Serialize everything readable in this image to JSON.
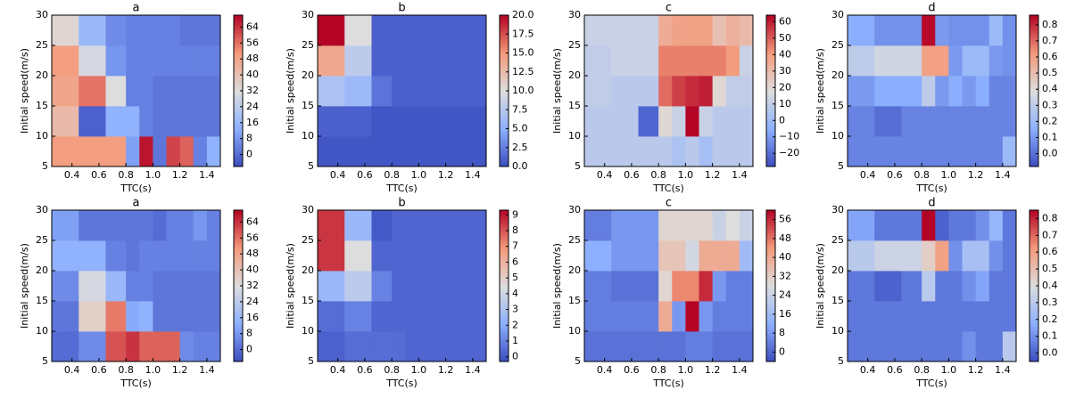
{
  "colormap": "coolwarm",
  "charts": [
    {
      "type": "heatmap",
      "title": "a",
      "xlabel": "TTC(s)",
      "ylabel": "Initial speed(m/s)",
      "x": [
        0.25,
        0.45,
        0.65,
        0.8,
        0.9,
        1.0,
        1.1,
        1.2,
        1.3,
        1.4,
        1.5
      ],
      "y": [
        5,
        10,
        15,
        20,
        25,
        30
      ],
      "z": [
        [
          50,
          50,
          50,
          10,
          68,
          2,
          62,
          58,
          4,
          14
        ],
        [
          42,
          -2,
          14,
          14,
          4,
          2,
          2,
          2,
          2,
          2
        ],
        [
          48,
          56,
          32,
          4,
          4,
          2,
          2,
          2,
          2,
          2
        ],
        [
          50,
          30,
          8,
          4,
          4,
          4,
          4,
          4,
          4,
          4
        ],
        [
          34,
          16,
          6,
          4,
          4,
          4,
          4,
          2,
          2,
          2
        ]
      ],
      "clim": [
        -6,
        70
      ],
      "cticks": [
        0,
        8,
        16,
        24,
        32,
        40,
        48,
        56,
        64
      ],
      "xticks": [
        0.4,
        0.6,
        0.8,
        {
          "value": 1.0,
          "label": "1.0"
        },
        1.2,
        1.4
      ],
      "yticks": [
        5,
        10,
        15,
        20,
        25,
        30
      ]
    },
    {
      "type": "heatmap",
      "title": "b",
      "xlabel": "TTC(s)",
      "ylabel": "Initial speed(m/s)",
      "x": [
        0.25,
        0.45,
        0.65,
        0.8,
        0.9,
        1.0,
        1.1,
        1.2,
        1.3,
        1.4,
        1.5
      ],
      "y": [
        5,
        10,
        15,
        20,
        25,
        30
      ],
      "z": [
        [
          0.5,
          0.5,
          0.5,
          0.5,
          0.5,
          0.5,
          0.5,
          0.5,
          0.5,
          0.5
        ],
        [
          1,
          1,
          0.5,
          0.5,
          0.5,
          0.5,
          0.5,
          0.5,
          0.5,
          0.5
        ],
        [
          7,
          6,
          2,
          1,
          1,
          1,
          1,
          1,
          1,
          1
        ],
        [
          14,
          8,
          1,
          1,
          1,
          1,
          1,
          1,
          1,
          1
        ],
        [
          20,
          10,
          1,
          1,
          1,
          1,
          1,
          1,
          1,
          1
        ]
      ],
      "clim": [
        0,
        20
      ],
      "cticks": [
        {
          "value": 0,
          "label": "0.0"
        },
        2.5,
        {
          "value": 5,
          "label": "5.0"
        },
        7.5,
        {
          "value": 10,
          "label": "10.0"
        },
        12.5,
        {
          "value": 15,
          "label": "15.0"
        },
        17.5,
        {
          "value": 20,
          "label": "20.0"
        }
      ],
      "xticks": [
        0.4,
        0.6,
        0.8,
        {
          "value": 1.0,
          "label": "1.0"
        },
        1.2,
        1.4
      ],
      "yticks": [
        5,
        10,
        15,
        20,
        25,
        30
      ]
    },
    {
      "type": "heatmap",
      "title": "c",
      "xlabel": "TTC(s)",
      "ylabel": "Initial speed(m/s)",
      "x": [
        0.25,
        0.45,
        0.65,
        0.8,
        0.9,
        1.0,
        1.1,
        1.2,
        1.3,
        1.4,
        1.5
      ],
      "y": [
        5,
        10,
        15,
        20,
        25,
        30
      ],
      "z": [
        [
          8,
          8,
          8,
          8,
          4,
          8,
          2,
          8,
          8,
          8
        ],
        [
          8,
          8,
          -22,
          20,
          12,
          64,
          12,
          8,
          8,
          8
        ],
        [
          10,
          8,
          8,
          48,
          55,
          58,
          60,
          20,
          10,
          10
        ],
        [
          10,
          12,
          12,
          45,
          45,
          45,
          45,
          45,
          40,
          12
        ],
        [
          12,
          12,
          12,
          35,
          38,
          38,
          38,
          28,
          33,
          30
        ]
      ],
      "clim": [
        -28,
        64
      ],
      "cticks": [
        {
          "value": -20,
          "label": "−20"
        },
        {
          "value": -10,
          "label": "−10"
        },
        0,
        10,
        20,
        30,
        40,
        50,
        60
      ],
      "xticks": [
        0.4,
        0.6,
        0.8,
        {
          "value": 1.0,
          "label": "1.0"
        },
        1.2,
        1.4
      ],
      "yticks": [
        5,
        10,
        15,
        20,
        25,
        30
      ]
    },
    {
      "type": "heatmap",
      "title": "d",
      "xlabel": "TTC(s)",
      "ylabel": "Initial speed(m/s)",
      "x": [
        0.25,
        0.45,
        0.65,
        0.8,
        0.9,
        1.0,
        1.1,
        1.2,
        1.3,
        1.4,
        1.5
      ],
      "y": [
        5,
        10,
        15,
        20,
        25,
        30
      ],
      "z": [
        [
          0.05,
          0.05,
          0.05,
          0.05,
          0.05,
          0.05,
          0.05,
          0.05,
          0.05,
          0.2
        ],
        [
          0.05,
          0.0,
          0.05,
          0.05,
          0.05,
          0.05,
          0.05,
          0.05,
          0.05,
          0.05
        ],
        [
          0.1,
          0.15,
          0.15,
          0.3,
          0.1,
          0.15,
          0.1,
          0.15,
          0.05,
          0.05
        ],
        [
          0.3,
          0.35,
          0.35,
          0.6,
          0.6,
          0.1,
          0.2,
          0.2,
          0.1,
          0.08
        ],
        [
          0.15,
          0.08,
          0.08,
          0.85,
          0.1,
          0.08,
          0.08,
          0.08,
          0.2,
          0.08
        ]
      ],
      "clim": [
        -0.08,
        0.86
      ],
      "cticks": [
        {
          "value": 0,
          "label": "0.0"
        },
        0.1,
        0.2,
        0.3,
        0.4,
        0.5,
        0.6,
        0.7,
        0.8
      ],
      "xticks": [
        0.4,
        0.6,
        0.8,
        {
          "value": 1.0,
          "label": "1.0"
        },
        1.2,
        1.4
      ],
      "yticks": [
        5,
        10,
        15,
        20,
        25,
        30
      ]
    },
    {
      "type": "heatmap",
      "title": "a",
      "xlabel": "TTC(s)",
      "ylabel": "Initial speed(m/s)",
      "x": [
        0.25,
        0.45,
        0.65,
        0.8,
        0.9,
        1.0,
        1.1,
        1.2,
        1.3,
        1.4,
        1.5
      ],
      "y": [
        5,
        10,
        15,
        20,
        25,
        30
      ],
      "z": [
        [
          0,
          6,
          60,
          64,
          58,
          58,
          58,
          6,
          4,
          4
        ],
        [
          2,
          36,
          55,
          12,
          14,
          2,
          2,
          2,
          2,
          2
        ],
        [
          6,
          30,
          16,
          4,
          4,
          2,
          2,
          2,
          2,
          2
        ],
        [
          14,
          14,
          4,
          2,
          4,
          4,
          4,
          4,
          4,
          4
        ],
        [
          10,
          2,
          2,
          2,
          2,
          0,
          4,
          4,
          8,
          4
        ]
      ],
      "clim": [
        -6,
        70
      ],
      "cticks": [
        0,
        8,
        16,
        24,
        32,
        40,
        48,
        56,
        64
      ],
      "xticks": [
        0.4,
        0.6,
        0.8,
        {
          "value": 1.0,
          "label": "1.0"
        },
        1.2,
        1.4
      ],
      "yticks": [
        5,
        10,
        15,
        20,
        25,
        30
      ]
    },
    {
      "type": "heatmap",
      "title": "b",
      "xlabel": "TTC(s)",
      "ylabel": "Initial speed(m/s)",
      "x": [
        0.25,
        0.45,
        0.65,
        0.8,
        0.9,
        1.0,
        1.1,
        1.2,
        1.3,
        1.4,
        1.5
      ],
      "y": [
        5,
        10,
        15,
        20,
        25,
        30
      ],
      "z": [
        [
          0.2,
          0.5,
          0.5,
          0.5,
          0.3,
          0.3,
          0.3,
          0.3,
          0.3,
          0.3
        ],
        [
          0.5,
          1,
          0.3,
          0.3,
          0.3,
          0.3,
          0.3,
          0.3,
          0.3,
          0.3
        ],
        [
          2.5,
          3.5,
          1,
          0.3,
          0.3,
          0.3,
          0.3,
          0.3,
          0.3,
          0.3
        ],
        [
          8.5,
          4.5,
          0.3,
          0.3,
          0.3,
          0.3,
          0.3,
          0.3,
          0.3,
          0.3
        ],
        [
          8.5,
          2.5,
          0,
          0.3,
          0.3,
          0.3,
          0.3,
          0.3,
          0.3,
          0.3
        ]
      ],
      "clim": [
        -0.3,
        9.3
      ],
      "cticks": [
        0,
        1,
        2,
        3,
        4,
        5,
        6,
        7,
        8,
        9
      ],
      "xticks": [
        0.4,
        0.6,
        0.8,
        {
          "value": 1.0,
          "label": "1.0"
        },
        1.2,
        1.4
      ],
      "yticks": [
        5,
        10,
        15,
        20,
        25,
        30
      ]
    },
    {
      "type": "heatmap",
      "title": "c",
      "xlabel": "TTC(s)",
      "ylabel": "Initial speed(m/s)",
      "x": [
        0.25,
        0.45,
        0.65,
        0.8,
        0.9,
        1.0,
        1.1,
        1.2,
        1.3,
        1.4,
        1.5
      ],
      "y": [
        5,
        10,
        15,
        20,
        25,
        30
      ],
      "z": [
        [
          2,
          2,
          2,
          2,
          2,
          4,
          4,
          2,
          2,
          2
        ],
        [
          4,
          4,
          4,
          40,
          8,
          60,
          8,
          4,
          4,
          4
        ],
        [
          4,
          2,
          2,
          30,
          46,
          46,
          56,
          8,
          4,
          4
        ],
        [
          12,
          8,
          8,
          34,
          34,
          26,
          40,
          40,
          40,
          16
        ],
        [
          4,
          8,
          8,
          30,
          30,
          30,
          30,
          24,
          28,
          24
        ]
      ],
      "clim": [
        -4,
        60
      ],
      "cticks": [
        0,
        8,
        16,
        24,
        32,
        40,
        48,
        56
      ],
      "xticks": [
        0.4,
        0.6,
        0.8,
        {
          "value": 1.0,
          "label": "1.0"
        },
        1.2,
        1.4
      ],
      "yticks": [
        5,
        10,
        15,
        20,
        25,
        30
      ]
    },
    {
      "type": "heatmap",
      "title": "d",
      "xlabel": "TTC(s)",
      "ylabel": "Initial speed(m/s)",
      "x": [
        0.25,
        0.45,
        0.65,
        0.8,
        0.9,
        1.0,
        1.1,
        1.2,
        1.3,
        1.4,
        1.5
      ],
      "y": [
        5,
        10,
        15,
        20,
        25,
        30
      ],
      "z": [
        [
          0.05,
          0.05,
          0.05,
          0.05,
          0.05,
          0.05,
          0.1,
          0.05,
          0.05,
          0.3
        ],
        [
          0.05,
          0.05,
          0.05,
          0.05,
          0.05,
          0.05,
          0.05,
          0.05,
          0.05,
          0.05
        ],
        [
          0.05,
          0.0,
          0.05,
          0.3,
          0.05,
          0.05,
          0.1,
          0.15,
          0.05,
          0.05
        ],
        [
          0.3,
          0.35,
          0.35,
          0.45,
          0.6,
          0.1,
          0.25,
          0.25,
          0.1,
          0.05
        ],
        [
          0.15,
          0.05,
          0.05,
          0.85,
          0.0,
          0.05,
          0.05,
          0.1,
          0.2,
          0.05
        ]
      ],
      "clim": [
        -0.05,
        0.85
      ],
      "cticks": [
        {
          "value": 0,
          "label": "0.0"
        },
        0.1,
        0.2,
        0.3,
        0.4,
        0.5,
        0.6,
        0.7,
        0.8
      ],
      "xticks": [
        0.4,
        0.6,
        0.8,
        {
          "value": 1.0,
          "label": "1.0"
        },
        1.2,
        1.4
      ],
      "yticks": [
        5,
        10,
        15,
        20,
        25,
        30
      ]
    }
  ]
}
